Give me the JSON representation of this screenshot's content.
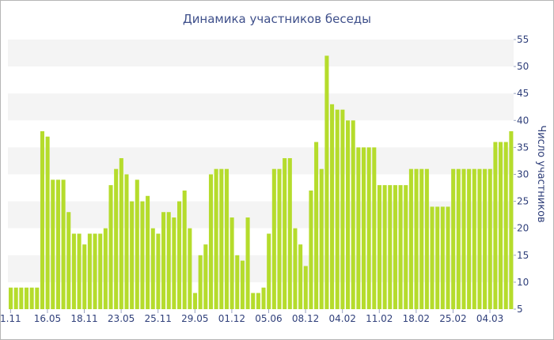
{
  "chart_data": {
    "type": "bar",
    "title": "Динамика участников беседы",
    "ylabel": "Число участников",
    "xlabel": "",
    "ylim": [
      5,
      55
    ],
    "yticks": [
      5,
      10,
      15,
      20,
      25,
      30,
      35,
      40,
      45,
      50,
      55
    ],
    "y_axis_side": "right",
    "grid": "alternating horizontal bands",
    "bar_color": "#b5dc2c",
    "band_color": "#f4f4f4",
    "text_color": "#2f3f7a",
    "x_tick_labels": [
      {
        "label": "1.11",
        "index": 0
      },
      {
        "label": "16.05",
        "index": 7
      },
      {
        "label": "18.11",
        "index": 14
      },
      {
        "label": "23.05",
        "index": 21
      },
      {
        "label": "25.11",
        "index": 28
      },
      {
        "label": "29.05",
        "index": 35
      },
      {
        "label": "01.12",
        "index": 42
      },
      {
        "label": "05.06",
        "index": 49
      },
      {
        "label": "08.12",
        "index": 56
      },
      {
        "label": "04.02",
        "index": 63
      },
      {
        "label": "11.02",
        "index": 70
      },
      {
        "label": "18.02",
        "index": 77
      },
      {
        "label": "25.02",
        "index": 84
      },
      {
        "label": "04.03",
        "index": 91
      }
    ],
    "values": [
      9,
      9,
      9,
      9,
      9,
      9,
      38,
      37,
      29,
      29,
      29,
      23,
      19,
      19,
      17,
      19,
      19,
      19,
      20,
      28,
      31,
      33,
      30,
      25,
      29,
      25,
      26,
      20,
      19,
      23,
      23,
      22,
      25,
      27,
      20,
      8,
      15,
      17,
      30,
      31,
      31,
      31,
      22,
      15,
      14,
      22,
      8,
      8,
      9,
      19,
      31,
      31,
      33,
      33,
      20,
      17,
      13,
      27,
      36,
      31,
      52,
      43,
      42,
      42,
      40,
      40,
      35,
      35,
      35,
      35,
      28,
      28,
      28,
      28,
      28,
      28,
      31,
      31,
      31,
      31,
      24,
      24,
      24,
      24,
      31,
      31,
      31,
      31,
      31,
      31,
      31,
      31,
      36,
      36,
      36,
      38
    ]
  }
}
